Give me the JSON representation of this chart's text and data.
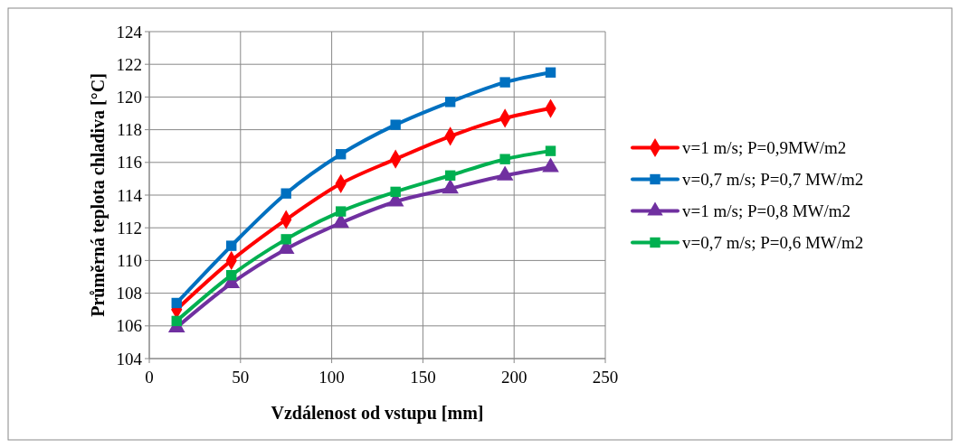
{
  "chart_data": {
    "type": "line",
    "xlabel": "Vzdálenost od vstupu [mm]",
    "ylabel": "Průměrná teplota chladiva [°C]",
    "x": [
      15,
      45,
      75,
      105,
      135,
      165,
      195,
      220
    ],
    "xlim": [
      0,
      250
    ],
    "xticks": [
      0,
      50,
      100,
      150,
      200,
      250
    ],
    "ylim": [
      104,
      124
    ],
    "yticks": [
      104,
      106,
      108,
      110,
      112,
      114,
      116,
      118,
      120,
      122,
      124
    ],
    "grid": true,
    "legend": "right",
    "line_style": "solid",
    "series": [
      {
        "name": "v=1 m/s; P=0,9MW/m2",
        "color": "#ff0000",
        "marker": "diamond",
        "values": [
          107,
          110,
          112.5,
          114.7,
          116.2,
          117.6,
          118.7,
          119.3
        ]
      },
      {
        "name": "v=0,7 m/s; P=0,7 MW/m2",
        "color": "#0070c0",
        "marker": "square",
        "values": [
          107.4,
          110.9,
          114.1,
          116.5,
          118.3,
          119.7,
          120.9,
          121.5
        ]
      },
      {
        "name": "v=1 m/s; P=0,8 MW/m2",
        "color": "#7030a0",
        "marker": "triangle",
        "values": [
          105.9,
          108.6,
          110.7,
          112.3,
          113.6,
          114.4,
          115.2,
          115.7
        ]
      },
      {
        "name": "v=0,7 m/s; P=0,6 MW/m2",
        "color": "#00b050",
        "marker": "square",
        "values": [
          106.3,
          109.1,
          111.3,
          113.0,
          114.2,
          115.2,
          116.2,
          116.7
        ]
      }
    ]
  }
}
